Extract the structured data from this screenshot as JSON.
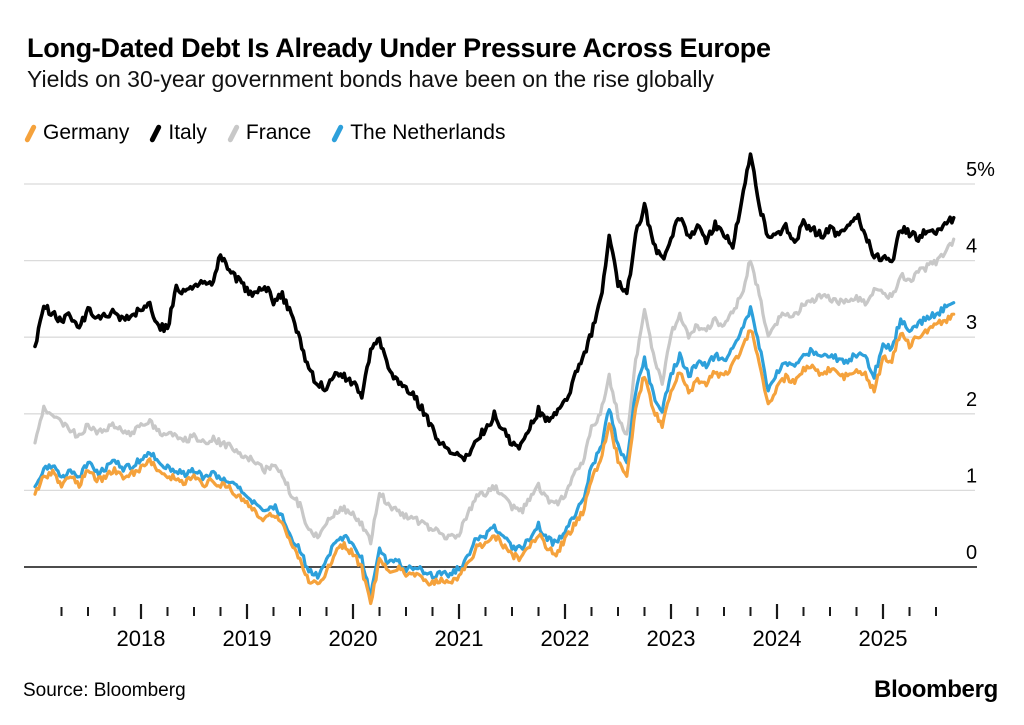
{
  "header": {
    "title": "Long-Dated Debt Is Already Under Pressure Across Europe",
    "subtitle": "Yields on 30-year government bonds have been on the rise globally"
  },
  "footer": {
    "source": "Source: Bloomberg",
    "logo": "Bloomberg"
  },
  "colors": {
    "germany": "#F5A23C",
    "italy": "#000000",
    "france": "#C8C8C8",
    "netherlands": "#2DA0DB",
    "gridline": "#DBDBDB",
    "zeroline": "#333333",
    "tick": "#1a1a1a"
  },
  "chart_data": {
    "type": "line",
    "title": "Long-Dated Debt Is Already Under Pressure Across Europe",
    "subtitle": "Yields on 30-year government bonds have been on the rise globally",
    "unit": "percent yield",
    "x_start_year": 2017.0,
    "x_interval": "monthly",
    "xlim": [
      2016.97,
      2025.8
    ],
    "ylim": [
      -0.6,
      5.5
    ],
    "grid": "horizontal",
    "legend_position": "top",
    "y_ticks": [
      {
        "value": 5,
        "label": "5%"
      },
      {
        "value": 4,
        "label": "4"
      },
      {
        "value": 3,
        "label": "3"
      },
      {
        "value": 2,
        "label": "2"
      },
      {
        "value": 1,
        "label": "1"
      },
      {
        "value": 0,
        "label": "0"
      }
    ],
    "x_year_labels": [
      "2018",
      "2019",
      "2020",
      "2021",
      "2022",
      "2023",
      "2024",
      "2025"
    ],
    "x_minor_ticks": "quarterly from 2017-04 to 2025-07, tall tick at January of each labeled year",
    "series": [
      {
        "name": "France",
        "color": "#C8C8C8",
        "values": [
          1.62,
          2.1,
          1.95,
          1.88,
          1.8,
          1.7,
          1.85,
          1.75,
          1.8,
          1.85,
          1.78,
          1.75,
          1.85,
          1.9,
          1.78,
          1.72,
          1.7,
          1.65,
          1.7,
          1.62,
          1.68,
          1.62,
          1.58,
          1.5,
          1.45,
          1.35,
          1.25,
          1.35,
          1.22,
          0.95,
          0.8,
          0.45,
          0.4,
          0.6,
          0.72,
          0.75,
          0.72,
          0.55,
          0.32,
          0.98,
          0.8,
          0.75,
          0.65,
          0.62,
          0.55,
          0.5,
          0.42,
          0.38,
          0.45,
          0.68,
          0.92,
          0.95,
          1.05,
          0.9,
          0.78,
          0.72,
          0.88,
          1.05,
          0.88,
          0.82,
          0.95,
          1.2,
          1.38,
          1.8,
          2.02,
          2.48,
          1.98,
          1.7,
          2.68,
          3.32,
          2.78,
          2.42,
          3.05,
          3.28,
          3.02,
          3.15,
          3.1,
          3.22,
          3.15,
          3.32,
          3.55,
          4.02,
          3.55,
          3.0,
          3.2,
          3.32,
          3.28,
          3.42,
          3.46,
          3.55,
          3.5,
          3.45,
          3.5,
          3.52,
          3.45,
          3.6,
          3.58,
          3.52,
          3.82,
          3.72,
          3.85,
          3.92,
          3.98,
          4.1,
          4.28
        ]
      },
      {
        "name": "The Netherlands",
        "color": "#2DA0DB",
        "values": [
          1.05,
          1.28,
          1.32,
          1.15,
          1.28,
          1.18,
          1.38,
          1.22,
          1.28,
          1.38,
          1.28,
          1.32,
          1.4,
          1.5,
          1.36,
          1.3,
          1.25,
          1.2,
          1.26,
          1.18,
          1.22,
          1.18,
          1.12,
          1.02,
          0.95,
          0.82,
          0.72,
          0.8,
          0.65,
          0.38,
          0.22,
          -0.05,
          -0.12,
          0.08,
          0.32,
          0.4,
          0.3,
          0.1,
          -0.38,
          0.22,
          0.05,
          0.1,
          -0.02,
          0.0,
          -0.06,
          -0.12,
          -0.06,
          -0.1,
          -0.02,
          0.15,
          0.37,
          0.42,
          0.54,
          0.4,
          0.27,
          0.24,
          0.37,
          0.54,
          0.37,
          0.3,
          0.47,
          0.67,
          0.85,
          1.32,
          1.52,
          2.08,
          1.58,
          1.32,
          2.3,
          2.72,
          2.25,
          2.05,
          2.52,
          2.77,
          2.5,
          2.67,
          2.62,
          2.77,
          2.7,
          2.87,
          3.07,
          3.36,
          2.88,
          2.32,
          2.55,
          2.68,
          2.62,
          2.78,
          2.82,
          2.72,
          2.78,
          2.7,
          2.68,
          2.78,
          2.72,
          2.5,
          2.9,
          2.86,
          3.24,
          3.04,
          3.18,
          3.24,
          3.3,
          3.38,
          3.45
        ]
      },
      {
        "name": "Germany",
        "color": "#F5A23C",
        "values": [
          0.95,
          1.18,
          1.22,
          1.05,
          1.18,
          1.08,
          1.28,
          1.12,
          1.18,
          1.28,
          1.18,
          1.22,
          1.3,
          1.4,
          1.26,
          1.2,
          1.15,
          1.1,
          1.16,
          1.08,
          1.12,
          1.08,
          1.02,
          0.92,
          0.85,
          0.72,
          0.62,
          0.7,
          0.55,
          0.28,
          0.1,
          -0.18,
          -0.25,
          -0.05,
          0.2,
          0.28,
          0.18,
          -0.02,
          -0.5,
          0.12,
          -0.05,
          0.0,
          -0.1,
          -0.08,
          -0.15,
          -0.22,
          -0.16,
          -0.2,
          -0.12,
          0.05,
          0.25,
          0.3,
          0.42,
          0.28,
          0.15,
          0.12,
          0.25,
          0.42,
          0.25,
          0.18,
          0.35,
          0.55,
          0.7,
          1.15,
          1.35,
          1.9,
          1.4,
          1.15,
          2.1,
          2.5,
          2.05,
          1.85,
          2.3,
          2.55,
          2.28,
          2.45,
          2.4,
          2.55,
          2.48,
          2.65,
          2.85,
          3.12,
          2.65,
          2.1,
          2.35,
          2.48,
          2.42,
          2.58,
          2.62,
          2.52,
          2.58,
          2.5,
          2.48,
          2.58,
          2.52,
          2.3,
          2.72,
          2.68,
          3.08,
          2.88,
          3.02,
          3.08,
          3.15,
          3.22,
          3.3
        ]
      },
      {
        "name": "Italy",
        "color": "#000000",
        "values": [
          2.88,
          3.4,
          3.32,
          3.2,
          3.28,
          3.15,
          3.35,
          3.22,
          3.28,
          3.35,
          3.22,
          3.28,
          3.38,
          3.42,
          3.15,
          3.12,
          3.65,
          3.55,
          3.7,
          3.75,
          3.65,
          4.1,
          3.85,
          3.75,
          3.6,
          3.55,
          3.7,
          3.45,
          3.55,
          3.3,
          2.95,
          2.6,
          2.38,
          2.35,
          2.55,
          2.48,
          2.42,
          2.2,
          2.85,
          3.0,
          2.55,
          2.45,
          2.3,
          2.22,
          2.02,
          1.8,
          1.62,
          1.52,
          1.45,
          1.42,
          1.7,
          1.78,
          1.98,
          1.8,
          1.62,
          1.58,
          1.8,
          2.05,
          1.9,
          1.98,
          2.15,
          2.45,
          2.7,
          3.05,
          3.45,
          4.3,
          3.7,
          3.55,
          4.35,
          4.7,
          4.2,
          4.0,
          4.3,
          4.58,
          4.32,
          4.45,
          4.28,
          4.48,
          4.32,
          4.2,
          4.75,
          5.38,
          4.72,
          4.3,
          4.35,
          4.45,
          4.25,
          4.48,
          4.42,
          4.32,
          4.42,
          4.3,
          4.45,
          4.6,
          4.35,
          4.02,
          4.05,
          3.98,
          4.42,
          4.35,
          4.3,
          4.42,
          4.38,
          4.48,
          4.56
        ]
      }
    ],
    "legend_order": [
      "Germany",
      "Italy",
      "France",
      "The Netherlands"
    ]
  }
}
